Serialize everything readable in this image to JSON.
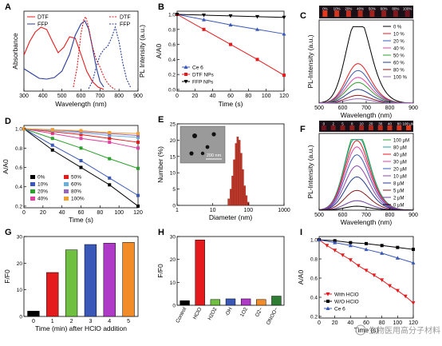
{
  "chart_data": [
    {
      "id": "A",
      "type": "line",
      "panel_label": "A",
      "xlabel": "Wavelength (nm)",
      "ylabel_left": "Absorbance",
      "ylabel_right": "PL Intensity (a.u.)",
      "xlim": [
        300,
        900
      ],
      "xticks": [
        "300",
        "400",
        "500",
        "600",
        "700",
        "800",
        "900"
      ],
      "legend": [
        "DTF",
        "FFP",
        "DTF",
        "FFP"
      ],
      "series": [
        {
          "name": "DTF",
          "style": "solid",
          "color": "#e41a1c",
          "x": [
            300,
            330,
            360,
            390,
            420,
            450,
            480,
            510,
            540,
            570,
            600,
            630,
            660,
            690,
            720
          ],
          "y": [
            0.45,
            0.62,
            0.74,
            0.8,
            0.77,
            0.62,
            0.48,
            0.55,
            0.68,
            0.66,
            0.46,
            0.25,
            0.12,
            0.05,
            0.02
          ]
        },
        {
          "name": "FFP",
          "style": "solid",
          "color": "#2b3b9a",
          "x": [
            300,
            340,
            380,
            420,
            460,
            500,
            540,
            570,
            600,
            620,
            640,
            660,
            680,
            700,
            720
          ],
          "y": [
            0.28,
            0.22,
            0.16,
            0.15,
            0.17,
            0.25,
            0.46,
            0.7,
            0.84,
            0.88,
            0.78,
            0.55,
            0.3,
            0.12,
            0.05
          ]
        },
        {
          "name": "DTF",
          "style": "dotted",
          "color": "#e41a1c",
          "x": [
            560,
            580,
            600,
            615,
            625,
            640,
            660,
            680,
            700,
            720,
            740,
            760,
            780
          ],
          "y": [
            0.05,
            0.3,
            0.72,
            0.9,
            0.93,
            0.8,
            0.56,
            0.4,
            0.3,
            0.18,
            0.1,
            0.05,
            0.02
          ]
        },
        {
          "name": "FFP",
          "style": "dotted",
          "color": "#2b3b9a",
          "x": [
            640,
            660,
            680,
            700,
            720,
            740,
            760,
            770,
            780,
            800,
            820,
            840,
            860
          ],
          "y": [
            0.03,
            0.12,
            0.3,
            0.45,
            0.52,
            0.56,
            0.66,
            0.73,
            0.8,
            0.62,
            0.35,
            0.15,
            0.05
          ]
        }
      ]
    },
    {
      "id": "B",
      "type": "line",
      "panel_label": "B",
      "xlabel": "Time (s)",
      "ylabel": "A/A0",
      "xlim": [
        0,
        120
      ],
      "ylim": [
        0,
        1.0
      ],
      "xticks": [
        "0",
        "20",
        "40",
        "60",
        "80",
        "100",
        "120"
      ],
      "yticks": [
        "0.0",
        "0.2",
        "0.4",
        "0.6",
        "0.8",
        "1.0"
      ],
      "legend": [
        "Ce 6",
        "DTF NPs",
        "FFP NPs"
      ],
      "series": [
        {
          "name": "Ce 6",
          "color": "#3a58b8",
          "marker": "triangle",
          "x": [
            0,
            30,
            60,
            90,
            120
          ],
          "y": [
            1.0,
            0.93,
            0.86,
            0.8,
            0.74
          ]
        },
        {
          "name": "DTF NPs",
          "color": "#e41a1c",
          "marker": "square",
          "x": [
            0,
            30,
            60,
            90,
            120
          ],
          "y": [
            1.0,
            0.8,
            0.6,
            0.4,
            0.19
          ]
        },
        {
          "name": "FFP NPs",
          "color": "#000000",
          "marker": "triangle-down",
          "x": [
            0,
            30,
            60,
            90,
            120
          ],
          "y": [
            1.0,
            0.99,
            0.98,
            0.97,
            0.96
          ]
        }
      ]
    },
    {
      "id": "C",
      "type": "line",
      "panel_label": "C",
      "xlabel": "Wavelength (nm)",
      "ylabel": "PL-Intensity (a.u.)",
      "xlim": [
        500,
        900
      ],
      "xticks": [
        "500",
        "600",
        "700",
        "800",
        "900"
      ],
      "strip_labels": [
        "0%",
        "10%",
        "20%",
        "40%",
        "50%",
        "60%",
        "80%",
        "100%"
      ],
      "legend": [
        "0 %",
        "10 %",
        "20 %",
        "40 %",
        "50 %",
        "60 %",
        "80 %",
        "100 %"
      ],
      "peak_nm": 660,
      "series": [
        {
          "name": "0 %",
          "color": "#000000",
          "peak": 1.0
        },
        {
          "name": "10 %",
          "color": "#e41a1c",
          "peak": 0.46
        },
        {
          "name": "20 %",
          "color": "#3a58b8",
          "peak": 0.38
        },
        {
          "name": "40 %",
          "color": "#e040a0",
          "peak": 0.3
        },
        {
          "name": "50 %",
          "color": "#2ca02c",
          "peak": 0.24
        },
        {
          "name": "60 %",
          "color": "#1f3b8f",
          "peak": 0.16
        },
        {
          "name": "80 %",
          "color": "#8b1a1a",
          "peak": 0.09
        },
        {
          "name": "100 %",
          "color": "#9467bd",
          "peak": 0.05
        }
      ]
    },
    {
      "id": "D",
      "type": "line",
      "panel_label": "D",
      "xlabel": "Time (s)",
      "ylabel": "A/A0",
      "xlim": [
        0,
        120
      ],
      "ylim": [
        0.2,
        1.0
      ],
      "xticks": [
        "0",
        "20",
        "40",
        "60",
        "80",
        "100",
        "120"
      ],
      "yticks": [
        "0.2",
        "0.4",
        "0.6",
        "0.8",
        "1.0"
      ],
      "legend": [
        "0%",
        "10%",
        "20%",
        "40%",
        "50%",
        "60%",
        "80%",
        "100%"
      ],
      "series": [
        {
          "name": "0%",
          "color": "#000000",
          "x": [
            0,
            30,
            60,
            90,
            120
          ],
          "y": [
            1.0,
            0.78,
            0.6,
            0.42,
            0.2
          ]
        },
        {
          "name": "10%",
          "color": "#3a58b8",
          "x": [
            0,
            30,
            60,
            90,
            120
          ],
          "y": [
            1.0,
            0.83,
            0.67,
            0.49,
            0.31
          ]
        },
        {
          "name": "20%",
          "color": "#2ca02c",
          "x": [
            0,
            30,
            60,
            90,
            120
          ],
          "y": [
            1.0,
            0.9,
            0.8,
            0.69,
            0.59
          ]
        },
        {
          "name": "40%",
          "color": "#e040a0",
          "x": [
            0,
            30,
            60,
            90,
            120
          ],
          "y": [
            1.0,
            0.95,
            0.9,
            0.86,
            0.8
          ]
        },
        {
          "name": "50%",
          "color": "#e41a1c",
          "x": [
            0,
            30,
            60,
            90,
            120
          ],
          "y": [
            1.0,
            0.97,
            0.94,
            0.9,
            0.86
          ]
        },
        {
          "name": "60%",
          "color": "#6baed6",
          "x": [
            0,
            30,
            60,
            90,
            120
          ],
          "y": [
            1.0,
            0.98,
            0.96,
            0.93,
            0.91
          ]
        },
        {
          "name": "80%",
          "color": "#9467bd",
          "x": [
            0,
            30,
            60,
            90,
            120
          ],
          "y": [
            1.0,
            0.99,
            0.97,
            0.95,
            0.93
          ]
        },
        {
          "name": "100%",
          "color": "#f0a030",
          "x": [
            0,
            30,
            60,
            90,
            120
          ],
          "y": [
            1.0,
            0.99,
            0.98,
            0.96,
            0.95
          ]
        }
      ]
    },
    {
      "id": "E",
      "type": "bar",
      "panel_label": "E",
      "xlabel": "Diameter (nm)",
      "ylabel": "Number (%)",
      "xscale": "log",
      "xlim": [
        1,
        1000
      ],
      "ylim": [
        0,
        25
      ],
      "xticks": [
        "1",
        "10",
        "100",
        "1000"
      ],
      "yticks": [
        "0",
        "5",
        "10",
        "15",
        "20",
        "25"
      ],
      "inset_scale": "200 nm",
      "x": [
        28,
        32,
        36,
        40,
        45,
        50,
        56,
        63,
        70,
        79,
        88,
        99
      ],
      "values": [
        2,
        5,
        9,
        14,
        19,
        21,
        20,
        16,
        11,
        6,
        3,
        1
      ]
    },
    {
      "id": "F",
      "type": "line",
      "panel_label": "F",
      "xlabel": "Wavelength (nm)",
      "ylabel": "PL-Intensity (a.u.)",
      "xlim": [
        500,
        900
      ],
      "xticks": [
        "500",
        "600",
        "700",
        "800",
        "900"
      ],
      "strip_labels": [
        "0",
        "2",
        "5",
        "8",
        "10",
        "20",
        "30",
        "40",
        "80",
        "100 µM"
      ],
      "legend": [
        "100 µM",
        "80 µM",
        "40 µM",
        "30 µM",
        "20 µM",
        "10 µM",
        "8 µM",
        "5 µM",
        "2 µM",
        "0 µM"
      ],
      "peak_nm": 655,
      "series": [
        {
          "name": "100 µM",
          "color": "#2ca02c",
          "peak": 1.0
        },
        {
          "name": "80 µM",
          "color": "#1fa0a0",
          "peak": 0.96
        },
        {
          "name": "40 µM",
          "color": "#e41a1c",
          "peak": 0.88
        },
        {
          "name": "30 µM",
          "color": "#e040a0",
          "peak": 0.8
        },
        {
          "name": "20 µM",
          "color": "#3a58b8",
          "peak": 0.7
        },
        {
          "name": "10 µM",
          "color": "#8e44ad",
          "peak": 0.56
        },
        {
          "name": "8 µM",
          "color": "#1f3b8f",
          "peak": 0.42
        },
        {
          "name": "5 µM",
          "color": "#8b1a1a",
          "peak": 0.25
        },
        {
          "name": "2 µM",
          "color": "#6a3d9a",
          "peak": 0.12
        },
        {
          "name": "0 µM",
          "color": "#000000",
          "peak": 0.05
        }
      ]
    },
    {
      "id": "G",
      "type": "bar",
      "panel_label": "G",
      "xlabel": "Time (min) after HClO addition",
      "ylabel": "F/F0",
      "ylim": [
        0,
        30
      ],
      "yticks": [
        "0",
        "10",
        "20",
        "30"
      ],
      "categories": [
        "0",
        "1",
        "2",
        "3",
        "4",
        "5"
      ],
      "values": [
        2,
        16.5,
        25,
        27,
        27.5,
        27.8
      ],
      "colors": [
        "#000000",
        "#e41a1c",
        "#6fbf40",
        "#3a58b8",
        "#b03ac8",
        "#f28c28"
      ]
    },
    {
      "id": "H",
      "type": "bar",
      "panel_label": "H",
      "xlabel": "",
      "ylabel": "F/F0",
      "ylim": [
        0,
        30
      ],
      "yticks": [
        "0",
        "10",
        "20",
        "30"
      ],
      "categories": [
        "Control",
        "HClO",
        "H2O2",
        "·OH",
        "1O2",
        "O2−",
        "ONOO−"
      ],
      "values": [
        2,
        28.5,
        2.5,
        2.8,
        2.8,
        2.5,
        4
      ],
      "colors": [
        "#000000",
        "#e41a1c",
        "#6fbf40",
        "#3a58b8",
        "#b03ac8",
        "#f28c28",
        "#2e7d32"
      ]
    },
    {
      "id": "I",
      "type": "line",
      "panel_label": "I",
      "xlabel": "Time (s)",
      "ylabel": "A/A0",
      "xlim": [
        0,
        120
      ],
      "ylim": [
        0.2,
        1.0
      ],
      "xticks": [
        "0",
        "20",
        "40",
        "60",
        "80",
        "100",
        "120"
      ],
      "yticks": [
        "0.2",
        "0.4",
        "0.6",
        "0.8",
        "1.0"
      ],
      "legend": [
        "With HClO",
        "W/O HClO",
        "Ce 6"
      ],
      "series": [
        {
          "name": "With HClO",
          "color": "#e41a1c",
          "marker": "triangle-down",
          "x": [
            0,
            10,
            20,
            30,
            40,
            50,
            60,
            70,
            80,
            90,
            100,
            110,
            120
          ],
          "y": [
            1.0,
            0.94,
            0.89,
            0.84,
            0.79,
            0.73,
            0.68,
            0.63,
            0.58,
            0.52,
            0.47,
            0.41,
            0.34
          ]
        },
        {
          "name": "W/O HClO",
          "color": "#000000",
          "marker": "square",
          "x": [
            0,
            20,
            40,
            60,
            80,
            100,
            120
          ],
          "y": [
            1.0,
            0.99,
            0.97,
            0.96,
            0.94,
            0.92,
            0.9
          ]
        },
        {
          "name": "Ce 6",
          "color": "#3a58b8",
          "marker": "triangle",
          "x": [
            0,
            20,
            40,
            60,
            80,
            100,
            120
          ],
          "y": [
            1.0,
            0.97,
            0.94,
            0.9,
            0.86,
            0.81,
            0.76
          ]
        }
      ]
    }
  ],
  "watermark": "生物医用高分子材料"
}
